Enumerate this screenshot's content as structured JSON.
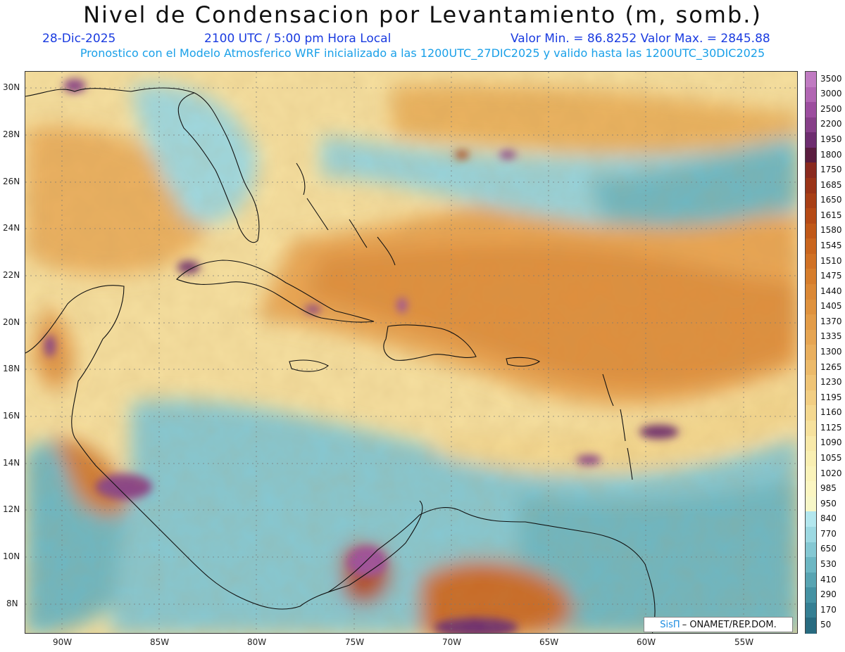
{
  "title": "Nivel de Condensacion por Levantamiento (m, somb.)",
  "date": "28-Dic-2025",
  "time": "2100 UTC / 5:00 pm Hora Local",
  "minmax": "Valor Min. = 86.8252  Valor Max. = 2845.88",
  "subtitle": "Pronostico con el Modelo Atmosferico WRF inicializado a las 1200UTC_27DIC2025 y valido hasta las  1200UTC_30DIC2025",
  "credit": {
    "logo": "SisΠ",
    "text": "– ONAMET/REP.DOM."
  },
  "lat_labels": [
    "30N",
    "28N",
    "26N",
    "24N",
    "22N",
    "20N",
    "18N",
    "16N",
    "14N",
    "12N",
    "10N",
    "8N"
  ],
  "lon_labels": [
    "90W",
    "85W",
    "80W",
    "75W",
    "70W",
    "65W",
    "60W",
    "55W"
  ],
  "colorbar": {
    "labels": [
      "3500",
      "3000",
      "2500",
      "2200",
      "1950",
      "1800",
      "1750",
      "1685",
      "1650",
      "1615",
      "1580",
      "1545",
      "1510",
      "1475",
      "1440",
      "1405",
      "1370",
      "1335",
      "1300",
      "1265",
      "1230",
      "1195",
      "1160",
      "1125",
      "1090",
      "1055",
      "1020",
      "985",
      "950",
      "840",
      "770",
      "650",
      "530",
      "410",
      "290",
      "170",
      "50"
    ],
    "colors": [
      "#c07bc2",
      "#b166b3",
      "#9c4e9f",
      "#874089",
      "#6e2e70",
      "#5a1d3f",
      "#8a2a1f",
      "#9a3418",
      "#a83f16",
      "#b54a16",
      "#c05818",
      "#c9651e",
      "#d07125",
      "#d67d2c",
      "#db8835",
      "#df923e",
      "#e39c48",
      "#e6a553",
      "#e9af5e",
      "#ecba6a",
      "#efc476",
      "#f2ce83",
      "#f4d890",
      "#f6e19d",
      "#f8e9a9",
      "#f9efb2",
      "#faf3ba",
      "#fbf6c2",
      "#f7f7c8",
      "#b3e7ee",
      "#9dd9e2",
      "#85c8d3",
      "#6db7c3",
      "#58a4b2",
      "#4592a3",
      "#357f93",
      "#286b80"
    ]
  },
  "colors": {
    "title": "#111111",
    "date": "#1a3be0",
    "subtitle": "#1aa0e8"
  }
}
